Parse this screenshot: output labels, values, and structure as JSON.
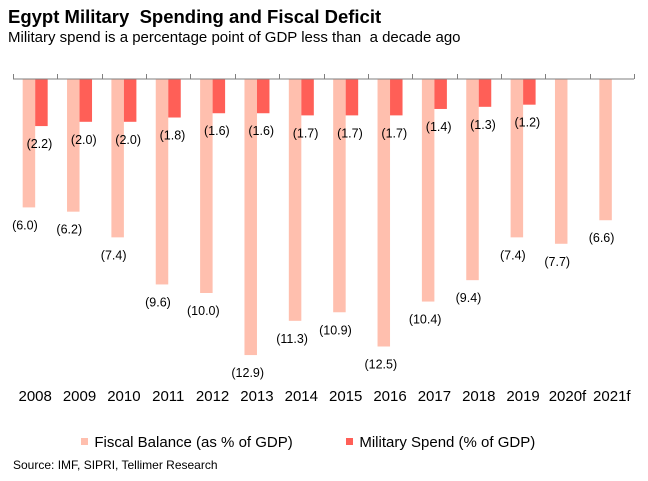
{
  "title": "Egypt Military  Spending and Fiscal Deficit",
  "subtitle": "Military spend is a percentage point of GDP less than  a decade ago",
  "source": "Source: IMF, SIPRI, Tellimer Research",
  "colors": {
    "fiscal": "#FFBFAE",
    "military": "#FF5F57",
    "axis": "#7F7F7F"
  },
  "chart_data": {
    "type": "bar",
    "title": "Egypt Military  Spending and Fiscal Deficit",
    "subtitle": "Military spend is a percentage point of GDP less than  a decade ago",
    "xlabel": "",
    "ylabel": "",
    "categories": [
      "2008",
      "2009",
      "2010",
      "2011",
      "2012",
      "2013",
      "2014",
      "2015",
      "2016",
      "2017",
      "2018",
      "2019",
      "2020f",
      "2021f"
    ],
    "series": [
      {
        "name": "Fiscal Balance (as % of GDP)",
        "values": [
          -6.0,
          -6.2,
          -7.4,
          -9.6,
          -10.0,
          -12.9,
          -11.3,
          -10.9,
          -12.5,
          -10.4,
          -9.4,
          -7.4,
          -7.7,
          -6.6
        ],
        "labels": [
          "(6.0)",
          "(6.2)",
          "(7.4)",
          "(9.6)",
          "(10.0)",
          "(12.9)",
          "(11.3)",
          "(10.9)",
          "(12.5)",
          "(10.4)",
          "(9.4)",
          "(7.4)",
          "(7.7)",
          "(6.6)"
        ]
      },
      {
        "name": "Military Spend (% of GDP)",
        "values": [
          -2.2,
          -2.0,
          -2.0,
          -1.8,
          -1.6,
          -1.6,
          -1.7,
          -1.7,
          -1.7,
          -1.4,
          -1.3,
          -1.2,
          null,
          null
        ],
        "labels": [
          "(2.2)",
          "(2.0)",
          "(2.0)",
          "(1.8)",
          "(1.6)",
          "(1.6)",
          "(1.7)",
          "(1.7)",
          "(1.7)",
          "(1.4)",
          "(1.3)",
          "(1.2)",
          null,
          null
        ]
      }
    ],
    "ylim": [
      -13.5,
      0
    ],
    "grid": false,
    "legend": "bottom"
  }
}
